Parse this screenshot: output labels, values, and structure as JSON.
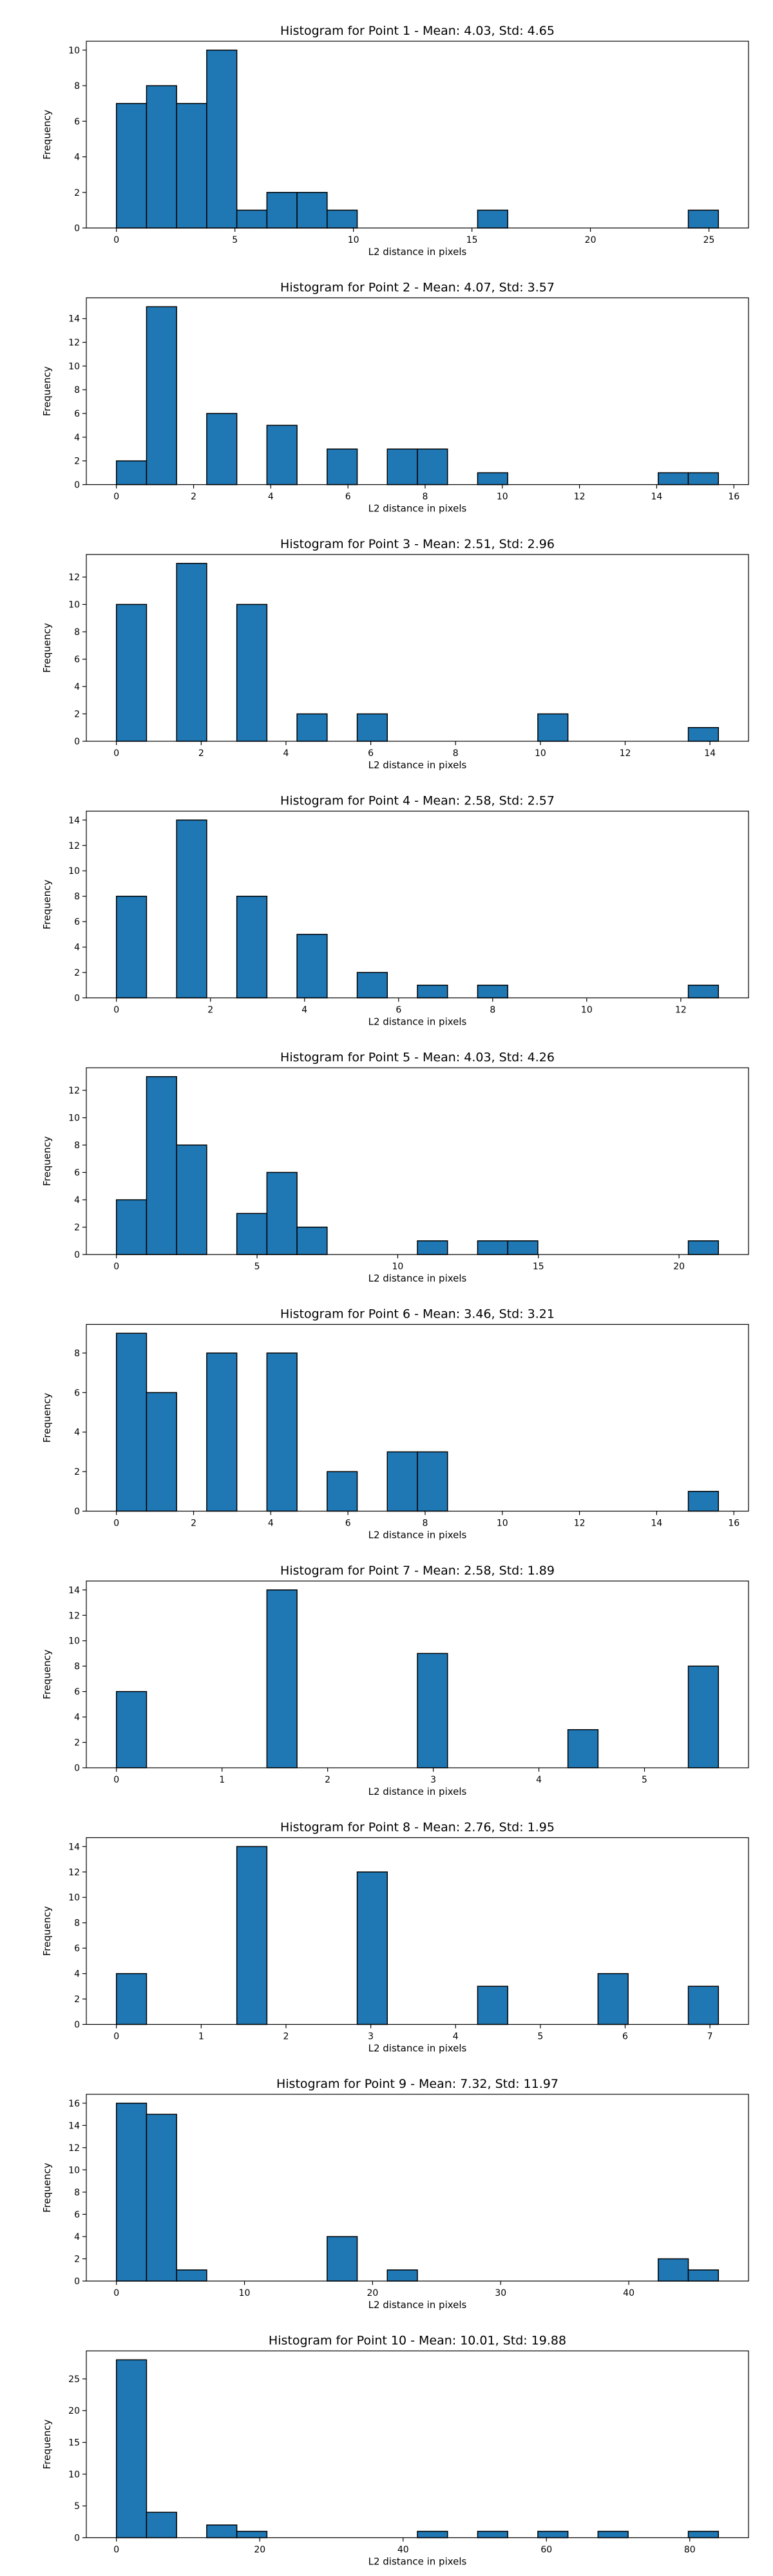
{
  "bar_color": "#1f77b4",
  "chart_data": [
    {
      "type": "bar",
      "title": "Histogram for Point 1 - Mean: 4.03, Std: 4.65",
      "xlabel": "L2 distance in pixels",
      "ylabel": "Frequency",
      "bin_edges": [
        0,
        1.27,
        2.54,
        3.81,
        5.08,
        6.35,
        7.62,
        8.89,
        10.16,
        11.43,
        12.7,
        13.97,
        15.24,
        16.51,
        17.78,
        19.05,
        20.32,
        21.59,
        22.86,
        24.13,
        25.4
      ],
      "values": [
        7,
        8,
        7,
        10,
        1,
        2,
        2,
        1,
        0,
        0,
        0,
        0,
        1,
        0,
        0,
        0,
        0,
        0,
        0,
        1
      ],
      "xlim": [
        -1.27,
        26.67
      ],
      "ylim": [
        0,
        10.5
      ],
      "xticks": [
        0,
        5,
        10,
        15,
        20,
        25
      ],
      "yticks": [
        0,
        2,
        4,
        6,
        8,
        10
      ]
    },
    {
      "type": "bar",
      "title": "Histogram for Point 2 - Mean: 4.07, Std: 3.57",
      "xlabel": "L2 distance in pixels",
      "ylabel": "Frequency",
      "bin_edges": [
        0,
        0.78,
        1.56,
        2.34,
        3.12,
        3.9,
        4.68,
        5.46,
        6.24,
        7.02,
        7.8,
        8.58,
        9.36,
        10.14,
        10.92,
        11.7,
        12.48,
        13.26,
        14.04,
        14.82,
        15.6
      ],
      "values": [
        2,
        15,
        0,
        6,
        0,
        5,
        0,
        3,
        0,
        3,
        3,
        0,
        1,
        0,
        0,
        0,
        0,
        0,
        1,
        1
      ],
      "xlim": [
        -0.78,
        16.38
      ],
      "ylim": [
        0,
        15.75
      ],
      "xticks": [
        0,
        2,
        4,
        6,
        8,
        10,
        12,
        14,
        16
      ],
      "yticks": [
        0,
        2,
        4,
        6,
        8,
        10,
        12,
        14
      ]
    },
    {
      "type": "bar",
      "title": "Histogram for Point 3 - Mean: 2.51, Std: 2.96",
      "xlabel": "L2 distance in pixels",
      "ylabel": "Frequency",
      "bin_edges": [
        0,
        0.71,
        1.42,
        2.13,
        2.84,
        3.55,
        4.26,
        4.97,
        5.68,
        6.39,
        7.1,
        7.81,
        8.52,
        9.23,
        9.94,
        10.65,
        11.36,
        12.07,
        12.78,
        13.49,
        14.2
      ],
      "values": [
        10,
        0,
        13,
        0,
        10,
        0,
        2,
        0,
        2,
        0,
        0,
        0,
        0,
        0,
        2,
        0,
        0,
        0,
        0,
        1
      ],
      "xlim": [
        -0.71,
        14.91
      ],
      "ylim": [
        0,
        13.65
      ],
      "xticks": [
        0,
        2,
        4,
        6,
        8,
        10,
        12,
        14
      ],
      "yticks": [
        0,
        2,
        4,
        6,
        8,
        10,
        12
      ]
    },
    {
      "type": "bar",
      "title": "Histogram for Point 4 - Mean: 2.58, Std: 2.57",
      "xlabel": "L2 distance in pixels",
      "ylabel": "Frequency",
      "bin_edges": [
        0,
        0.64,
        1.28,
        1.92,
        2.56,
        3.2,
        3.84,
        4.48,
        5.12,
        5.76,
        6.4,
        7.04,
        7.68,
        8.32,
        8.96,
        9.6,
        10.24,
        10.88,
        11.52,
        12.16,
        12.8
      ],
      "values": [
        8,
        0,
        14,
        0,
        8,
        0,
        5,
        0,
        2,
        0,
        1,
        0,
        1,
        0,
        0,
        0,
        0,
        0,
        0,
        1
      ],
      "xlim": [
        -0.64,
        13.44
      ],
      "ylim": [
        0,
        14.7
      ],
      "xticks": [
        0,
        2,
        4,
        6,
        8,
        10,
        12
      ],
      "yticks": [
        0,
        2,
        4,
        6,
        8,
        10,
        12,
        14
      ]
    },
    {
      "type": "bar",
      "title": "Histogram for Point 5 - Mean: 4.03, Std: 4.26",
      "xlabel": "L2 distance in pixels",
      "ylabel": "Frequency",
      "bin_edges": [
        0,
        1.07,
        2.14,
        3.21,
        4.28,
        5.35,
        6.42,
        7.49,
        8.56,
        9.63,
        10.7,
        11.77,
        12.84,
        13.91,
        14.98,
        16.05,
        17.12,
        18.19,
        19.26,
        20.33,
        21.4
      ],
      "values": [
        4,
        13,
        8,
        0,
        3,
        6,
        2,
        0,
        0,
        0,
        1,
        0,
        1,
        1,
        0,
        0,
        0,
        0,
        0,
        1
      ],
      "xlim": [
        -1.07,
        22.47
      ],
      "ylim": [
        0,
        13.65
      ],
      "xticks": [
        0,
        5,
        10,
        15,
        20
      ],
      "yticks": [
        0,
        2,
        4,
        6,
        8,
        10,
        12
      ]
    },
    {
      "type": "bar",
      "title": "Histogram for Point 6 - Mean: 3.46, Std: 3.21",
      "xlabel": "L2 distance in pixels",
      "ylabel": "Frequency",
      "bin_edges": [
        0,
        0.78,
        1.56,
        2.34,
        3.12,
        3.9,
        4.68,
        5.46,
        6.24,
        7.02,
        7.8,
        8.58,
        9.36,
        10.14,
        10.92,
        11.7,
        12.48,
        13.26,
        14.04,
        14.82,
        15.6
      ],
      "values": [
        9,
        6,
        0,
        8,
        0,
        8,
        0,
        2,
        0,
        3,
        3,
        0,
        0,
        0,
        0,
        0,
        0,
        0,
        0,
        1
      ],
      "xlim": [
        -0.78,
        16.38
      ],
      "ylim": [
        0,
        9.45
      ],
      "xticks": [
        0,
        2,
        4,
        6,
        8,
        10,
        12,
        14,
        16
      ],
      "yticks": [
        0,
        2,
        4,
        6,
        8
      ]
    },
    {
      "type": "bar",
      "title": "Histogram for Point 7 - Mean: 2.58, Std: 1.89",
      "xlabel": "L2 distance in pixels",
      "ylabel": "Frequency",
      "bin_edges": [
        0,
        0.285,
        0.57,
        0.855,
        1.14,
        1.425,
        1.71,
        1.995,
        2.28,
        2.565,
        2.85,
        3.135,
        3.42,
        3.705,
        3.99,
        4.275,
        4.56,
        4.845,
        5.13,
        5.415,
        5.7
      ],
      "values": [
        6,
        0,
        0,
        0,
        0,
        14,
        0,
        0,
        0,
        0,
        9,
        0,
        0,
        0,
        0,
        3,
        0,
        0,
        0,
        8
      ],
      "xlim": [
        -0.285,
        5.985
      ],
      "ylim": [
        0,
        14.7
      ],
      "xticks": [
        0,
        1,
        2,
        3,
        4,
        5
      ],
      "yticks": [
        0,
        2,
        4,
        6,
        8,
        10,
        12,
        14
      ]
    },
    {
      "type": "bar",
      "title": "Histogram for Point 8 - Mean: 2.76, Std: 1.95",
      "xlabel": "L2 distance in pixels",
      "ylabel": "Frequency",
      "bin_edges": [
        0,
        0.355,
        0.71,
        1.065,
        1.42,
        1.775,
        2.13,
        2.485,
        2.84,
        3.195,
        3.55,
        3.905,
        4.26,
        4.615,
        4.97,
        5.325,
        5.68,
        6.035,
        6.39,
        6.745,
        7.1
      ],
      "values": [
        4,
        0,
        0,
        0,
        14,
        0,
        0,
        0,
        12,
        0,
        0,
        0,
        3,
        0,
        0,
        0,
        4,
        0,
        0,
        3
      ],
      "xlim": [
        -0.355,
        7.455
      ],
      "ylim": [
        0,
        14.7
      ],
      "xticks": [
        0,
        1,
        2,
        3,
        4,
        5,
        6,
        7
      ],
      "yticks": [
        0,
        2,
        4,
        6,
        8,
        10,
        12,
        14
      ]
    },
    {
      "type": "bar",
      "title": "Histogram for Point 9 - Mean: 7.32, Std: 11.97",
      "xlabel": "L2 distance in pixels",
      "ylabel": "Frequency",
      "bin_edges": [
        0,
        2.35,
        4.7,
        7.05,
        9.4,
        11.75,
        14.1,
        16.45,
        18.8,
        21.15,
        23.5,
        25.85,
        28.2,
        30.55,
        32.9,
        35.25,
        37.6,
        39.95,
        42.3,
        44.65,
        47
      ],
      "values": [
        16,
        15,
        1,
        0,
        0,
        0,
        0,
        4,
        0,
        1,
        0,
        0,
        0,
        0,
        0,
        0,
        0,
        0,
        2,
        1
      ],
      "xlim": [
        -2.35,
        49.35
      ],
      "ylim": [
        0,
        16.8
      ],
      "xticks": [
        0,
        10,
        20,
        30,
        40
      ],
      "yticks": [
        0,
        2,
        4,
        6,
        8,
        10,
        12,
        14,
        16
      ]
    },
    {
      "type": "bar",
      "title": "Histogram for Point 10 - Mean: 10.01, Std: 19.88",
      "xlabel": "L2 distance in pixels",
      "ylabel": "Frequency",
      "bin_edges": [
        0,
        4.2,
        8.4,
        12.6,
        16.8,
        21,
        25.2,
        29.4,
        33.6,
        37.8,
        42,
        46.2,
        50.4,
        54.6,
        58.8,
        63,
        67.2,
        71.4,
        75.6,
        79.8,
        84
      ],
      "values": [
        28,
        4,
        0,
        2,
        1,
        0,
        0,
        0,
        0,
        0,
        1,
        0,
        1,
        0,
        1,
        0,
        1,
        0,
        0,
        1
      ],
      "xlim": [
        -4.2,
        88.2
      ],
      "ylim": [
        0,
        29.4
      ],
      "xticks": [
        0,
        20,
        40,
        60,
        80
      ],
      "yticks": [
        0,
        5,
        10,
        15,
        20,
        25
      ]
    }
  ]
}
